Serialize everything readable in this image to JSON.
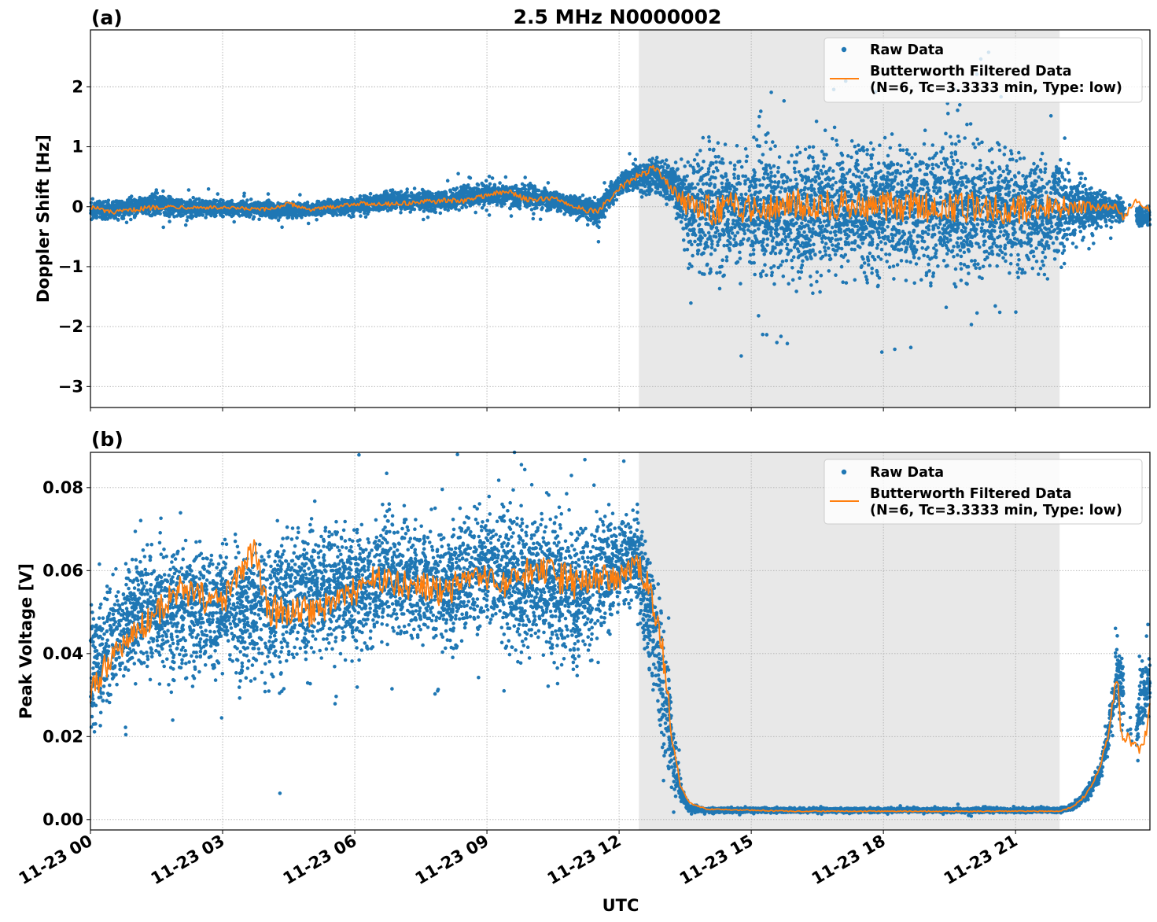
{
  "figure": {
    "title": "2.5 MHz N0000002",
    "xlabel": "UTC"
  },
  "colors": {
    "raw": "#1f77b4",
    "filtered": "#ff7f0e",
    "shade": "#e8e8e8",
    "grid": "#b0b0b0"
  },
  "legend": {
    "raw_label": "Raw Data",
    "filtered_label_line1": "Butterworth Filtered Data",
    "filtered_label_line2": "(N=6, Tc=3.3333 min, Type: low)"
  },
  "chart_data": [
    {
      "type": "scatter",
      "panel_label": "(a)",
      "title": "2.5 MHz N0000002",
      "xlabel": "",
      "ylabel": "Doppler Shift [Hz]",
      "x_unit": "hours UTC on 11-23",
      "xlim": [
        0,
        24.05
      ],
      "ylim": [
        -3.35,
        2.95
      ],
      "yticks": [
        -3,
        -2,
        -1,
        0,
        1,
        2
      ],
      "ytick_labels": [
        "−3",
        "−2",
        "−1",
        "0",
        "1",
        "2"
      ],
      "grid": true,
      "legend_position": "upper-right",
      "shaded_interval_hours": [
        12.45,
        22.0
      ],
      "series": [
        {
          "name": "Raw Data",
          "kind": "points",
          "envelope_x": [
            0,
            0.5,
            1,
            1.5,
            2,
            3,
            4,
            5,
            6,
            7,
            8,
            8.5,
            9,
            10,
            10.5,
            11,
            11.5,
            12,
            12.4,
            12.8,
            13.2,
            13.6,
            14,
            16,
            18,
            20,
            21,
            21.5,
            22,
            22.6,
            23,
            23.4,
            23.8,
            24.05
          ],
          "envelope_low": [
            -0.3,
            -0.25,
            -0.2,
            -0.2,
            -0.22,
            -0.2,
            -0.25,
            -0.2,
            -0.18,
            -0.1,
            -0.15,
            -0.05,
            -0.05,
            -0.1,
            -0.1,
            -0.2,
            -0.4,
            0.1,
            0.15,
            0.15,
            0.0,
            -1.3,
            -1.5,
            -1.5,
            -1.5,
            -1.5,
            -1.4,
            -1.3,
            -1.1,
            -0.6,
            -0.4,
            -0.3,
            -0.4,
            -0.4
          ],
          "envelope_high": [
            0.2,
            0.15,
            0.2,
            0.3,
            0.2,
            0.15,
            0.15,
            0.1,
            0.2,
            0.35,
            0.3,
            0.4,
            0.45,
            0.45,
            0.3,
            0.25,
            0.2,
            0.65,
            0.8,
            0.85,
            0.8,
            1.2,
            1.4,
            1.4,
            1.4,
            1.45,
            1.3,
            1.2,
            1.0,
            0.6,
            0.3,
            0.2,
            0.1,
            0.1
          ]
        },
        {
          "name": "Butterworth Filtered Data",
          "kind": "line",
          "x": [
            0,
            0.5,
            1,
            1.5,
            2,
            3,
            4,
            4.5,
            5,
            6,
            6.5,
            7,
            8,
            8.5,
            9,
            9.5,
            10,
            10.5,
            11,
            11.5,
            12,
            12.4,
            12.8,
            13.2,
            13.6,
            14,
            16,
            18,
            20,
            21,
            22,
            23,
            23.3,
            23.45,
            23.7,
            24.05
          ],
          "y": [
            0.0,
            -0.1,
            -0.05,
            0.0,
            0.0,
            -0.02,
            -0.05,
            0.05,
            -0.05,
            0.05,
            0.05,
            0.05,
            0.1,
            0.1,
            0.2,
            0.25,
            0.1,
            0.15,
            0.0,
            -0.1,
            0.3,
            0.5,
            0.65,
            0.3,
            0.0,
            -0.05,
            0.05,
            0.0,
            0.0,
            -0.05,
            0.0,
            0.0,
            0.0,
            -0.2,
            0.1,
            -0.05
          ]
        }
      ]
    },
    {
      "type": "scatter",
      "panel_label": "(b)",
      "xlabel": "UTC",
      "ylabel": "Peak Voltage [V]",
      "x_unit": "hours UTC on 11-23",
      "xlim": [
        0,
        24.05
      ],
      "ylim": [
        -0.0025,
        0.0885
      ],
      "yticks": [
        0.0,
        0.02,
        0.04,
        0.06,
        0.08
      ],
      "ytick_labels": [
        "0.00",
        "0.02",
        "0.04",
        "0.06",
        "0.08"
      ],
      "xtick_hours": [
        0,
        3,
        6,
        9,
        12,
        15,
        18,
        21
      ],
      "xtick_labels": [
        "11-23 00",
        "11-23 03",
        "11-23 06",
        "11-23 09",
        "11-23 12",
        "11-23 15",
        "11-23 18",
        "11-23 21"
      ],
      "grid": true,
      "legend_position": "upper-right",
      "shaded_interval_hours": [
        12.45,
        22.0
      ],
      "series": [
        {
          "name": "Raw Data",
          "kind": "points",
          "envelope_x": [
            0,
            0.5,
            1,
            1.5,
            2,
            3,
            4,
            5,
            6,
            7,
            8,
            9,
            10,
            11,
            12,
            12.4,
            12.7,
            13.0,
            13.2,
            13.4,
            13.6,
            14,
            16,
            18,
            20,
            21.5,
            22,
            22.3,
            22.6,
            22.9,
            23.1,
            23.3,
            23.4,
            23.55,
            23.7,
            23.85,
            24.05
          ],
          "envelope_low": [
            0.015,
            0.025,
            0.03,
            0.03,
            0.03,
            0.03,
            0.025,
            0.035,
            0.035,
            0.04,
            0.035,
            0.04,
            0.035,
            0.03,
            0.045,
            0.048,
            0.03,
            0.01,
            0.004,
            0.002,
            0.0015,
            0.0015,
            0.0015,
            0.0015,
            0.0015,
            0.0015,
            0.0015,
            0.002,
            0.004,
            0.008,
            0.015,
            0.025,
            0.02,
            0.016,
            0.014,
            0.018,
            0.022
          ],
          "envelope_high": [
            0.06,
            0.06,
            0.068,
            0.072,
            0.072,
            0.072,
            0.075,
            0.076,
            0.077,
            0.078,
            0.077,
            0.079,
            0.08,
            0.077,
            0.079,
            0.079,
            0.07,
            0.055,
            0.03,
            0.01,
            0.004,
            0.003,
            0.003,
            0.003,
            0.003,
            0.003,
            0.003,
            0.004,
            0.008,
            0.014,
            0.025,
            0.045,
            0.05,
            0.03,
            0.025,
            0.04,
            0.043
          ]
        },
        {
          "name": "Butterworth Filtered Data",
          "kind": "line",
          "x": [
            0,
            0.5,
            1,
            1.5,
            2,
            3,
            3.7,
            4,
            5,
            6,
            6.5,
            7,
            8,
            8.5,
            9,
            9.5,
            10,
            11,
            11.5,
            12,
            12.4,
            12.7,
            13.0,
            13.2,
            13.4,
            13.6,
            14,
            16,
            18,
            20,
            21,
            22,
            22.3,
            22.6,
            22.9,
            23.1,
            23.3,
            23.4,
            23.9,
            24.05
          ],
          "y": [
            0.03,
            0.04,
            0.045,
            0.05,
            0.055,
            0.052,
            0.065,
            0.05,
            0.05,
            0.055,
            0.058,
            0.057,
            0.055,
            0.057,
            0.058,
            0.056,
            0.06,
            0.057,
            0.058,
            0.058,
            0.062,
            0.055,
            0.04,
            0.02,
            0.008,
            0.004,
            0.0025,
            0.002,
            0.002,
            0.002,
            0.002,
            0.002,
            0.003,
            0.006,
            0.012,
            0.02,
            0.035,
            0.021,
            0.016,
            0.028
          ]
        }
      ]
    }
  ]
}
